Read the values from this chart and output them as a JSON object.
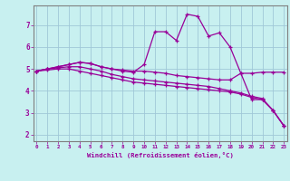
{
  "xlabel": "Windchill (Refroidissement éolien,°C)",
  "background_color": "#c8f0f0",
  "grid_color": "#a0c8d8",
  "line_color": "#990099",
  "x_ticks": [
    0,
    1,
    2,
    3,
    4,
    5,
    6,
    7,
    8,
    9,
    10,
    11,
    12,
    13,
    14,
    15,
    16,
    17,
    18,
    19,
    20,
    21,
    22,
    23
  ],
  "y_ticks": [
    2,
    3,
    4,
    5,
    6,
    7
  ],
  "xlim": [
    -0.3,
    23.3
  ],
  "ylim": [
    1.7,
    7.9
  ],
  "series": [
    [
      4.9,
      5.0,
      5.1,
      5.2,
      5.3,
      5.25,
      5.1,
      5.0,
      4.9,
      4.85,
      5.2,
      6.7,
      6.7,
      6.3,
      7.5,
      7.4,
      6.5,
      6.65,
      6.0,
      4.8,
      3.6,
      3.6,
      3.1,
      2.4
    ],
    [
      4.9,
      5.0,
      5.1,
      5.2,
      5.3,
      5.25,
      5.1,
      5.0,
      4.95,
      4.9,
      4.9,
      4.85,
      4.8,
      4.7,
      4.65,
      4.6,
      4.55,
      4.5,
      4.5,
      4.8,
      4.8,
      4.85,
      4.85,
      4.85
    ],
    [
      4.9,
      5.0,
      5.05,
      5.1,
      5.1,
      5.0,
      4.9,
      4.75,
      4.65,
      4.55,
      4.5,
      4.45,
      4.4,
      4.35,
      4.3,
      4.25,
      4.2,
      4.1,
      4.0,
      3.9,
      3.75,
      3.65,
      3.1,
      2.4
    ],
    [
      4.9,
      4.95,
      5.0,
      5.0,
      4.9,
      4.8,
      4.7,
      4.6,
      4.5,
      4.4,
      4.35,
      4.3,
      4.25,
      4.2,
      4.15,
      4.1,
      4.05,
      4.0,
      3.95,
      3.85,
      3.7,
      3.6,
      3.1,
      2.4
    ]
  ]
}
